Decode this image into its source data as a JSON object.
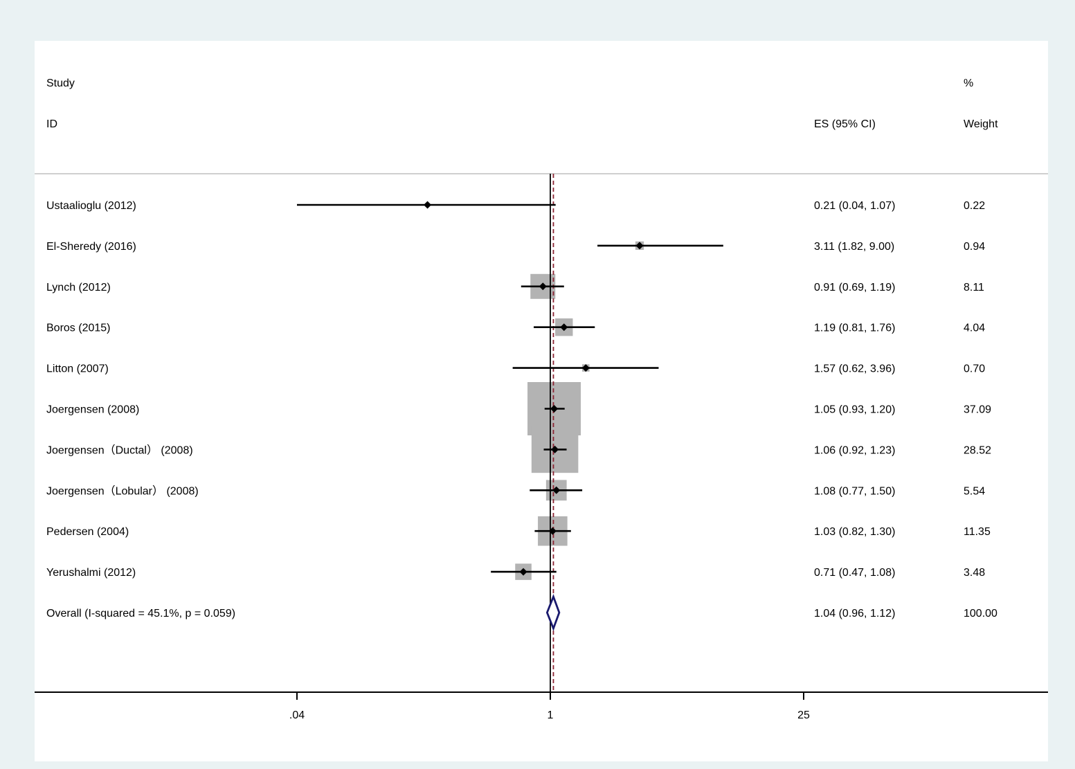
{
  "header": {
    "study_line1": "Study",
    "study_line2": "ID",
    "es_label": "ES (95% CI)",
    "weight_line1": "%",
    "weight_line2": "Weight"
  },
  "colors": {
    "background": "#eaf2f3",
    "panel": "#ffffff",
    "weight_box": "#b3b3b3",
    "point": "#000000",
    "ci_line": "#000000",
    "overall_diamond": "#1a1a6e",
    "overall_line": "#8b2332",
    "null_line": "#000000"
  },
  "chart_data": {
    "type": "forest",
    "x_scale": "log",
    "xlim": [
      0.04,
      115
    ],
    "null_value": 1,
    "overall_estimate": 1.04,
    "x_ticks": [
      {
        "value": 0.04,
        "label": ".04"
      },
      {
        "value": 1,
        "label": "1"
      },
      {
        "value": 25,
        "label": "25"
      }
    ],
    "studies": [
      {
        "name": "Ustaalioglu (2012)",
        "es": 0.21,
        "lower": 0.04,
        "upper": 1.07,
        "weight": 0.22,
        "es_text": "0.21 (0.04, 1.07)",
        "weight_text": "0.22"
      },
      {
        "name": "El-Sheredy (2016)",
        "es": 3.11,
        "lower": 1.82,
        "upper": 9.0,
        "weight": 0.94,
        "es_text": "3.11 (1.82, 9.00)",
        "weight_text": "0.94"
      },
      {
        "name": "Lynch (2012)",
        "es": 0.91,
        "lower": 0.69,
        "upper": 1.19,
        "weight": 8.11,
        "es_text": "0.91 (0.69, 1.19)",
        "weight_text": "8.11"
      },
      {
        "name": "Boros (2015)",
        "es": 1.19,
        "lower": 0.81,
        "upper": 1.76,
        "weight": 4.04,
        "es_text": "1.19 (0.81, 1.76)",
        "weight_text": "4.04"
      },
      {
        "name": "Litton (2007)",
        "es": 1.57,
        "lower": 0.62,
        "upper": 3.96,
        "weight": 0.7,
        "es_text": "1.57 (0.62, 3.96)",
        "weight_text": "0.70"
      },
      {
        "name": "Joergensen (2008)",
        "es": 1.05,
        "lower": 0.93,
        "upper": 1.2,
        "weight": 37.09,
        "es_text": "1.05 (0.93, 1.20)",
        "weight_text": "37.09"
      },
      {
        "name": "Joergensen（Ductal） (2008)",
        "es": 1.06,
        "lower": 0.92,
        "upper": 1.23,
        "weight": 28.52,
        "es_text": "1.06 (0.92, 1.23)",
        "weight_text": "28.52"
      },
      {
        "name": "Joergensen（Lobular） (2008)",
        "es": 1.08,
        "lower": 0.77,
        "upper": 1.5,
        "weight": 5.54,
        "es_text": "1.08 (0.77, 1.50)",
        "weight_text": "5.54"
      },
      {
        "name": "Pedersen (2004)",
        "es": 1.03,
        "lower": 0.82,
        "upper": 1.3,
        "weight": 11.35,
        "es_text": "1.03 (0.82, 1.30)",
        "weight_text": "11.35"
      },
      {
        "name": "Yerushalmi (2012)",
        "es": 0.71,
        "lower": 0.47,
        "upper": 1.08,
        "weight": 3.48,
        "es_text": "0.71 (0.47, 1.08)",
        "weight_text": "3.48"
      }
    ],
    "overall": {
      "name": "Overall  (I-squared = 45.1%, p = 0.059)",
      "es": 1.04,
      "lower": 0.96,
      "upper": 1.12,
      "weight": 100.0,
      "es_text": "1.04 (0.96, 1.12)",
      "weight_text": "100.00"
    }
  }
}
